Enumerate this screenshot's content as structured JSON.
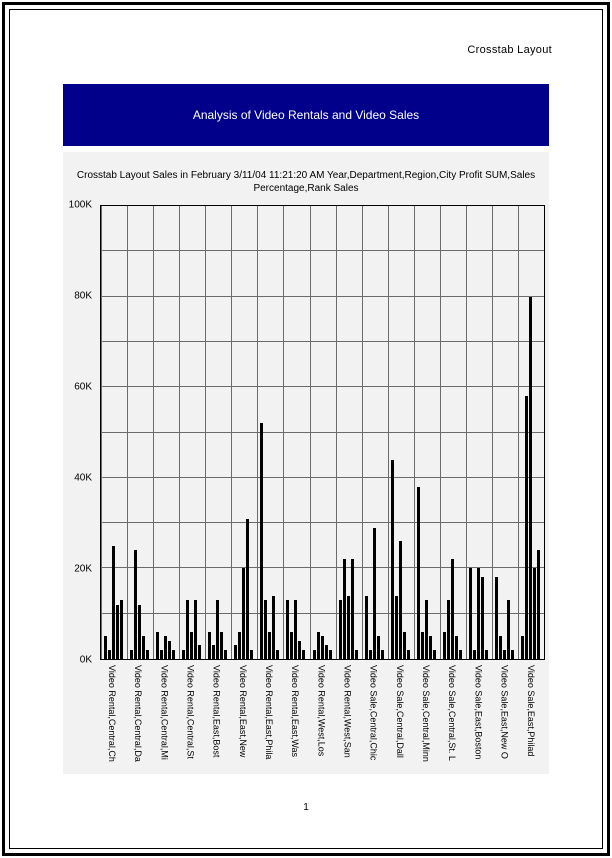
{
  "header": {
    "label": "Crosstab Layout"
  },
  "banner": {
    "title": "Analysis of Video Rentals and Video Sales"
  },
  "footer": {
    "page_number": "1"
  },
  "colors": {
    "banner": "#00008B",
    "bar": "#000000",
    "chart_bg": "#F2F2F2",
    "grid": "#6b6b6b"
  },
  "chart_data": {
    "type": "bar",
    "title_lines": [
      "Crosstab Layout Sales in February 3/11/04 11:21:20 AM Year,Department,Region,City Profit SUM,Sales",
      "Percentage,Rank Sales"
    ],
    "y_unit": "K",
    "ylim": [
      0,
      100
    ],
    "grid_step": 10,
    "yticks": [
      {
        "value": 0,
        "label": "0K"
      },
      {
        "value": 20,
        "label": "20K"
      },
      {
        "value": 40,
        "label": "40K"
      },
      {
        "value": 60,
        "label": "60K"
      },
      {
        "value": 80,
        "label": "80K"
      },
      {
        "value": 100,
        "label": "100K"
      }
    ],
    "categories": [
      "Video Rental,Central,Ch",
      "Video Rental,Central,Da",
      "Video Rental,Central,Mi",
      "Video Rental,Central,St",
      "Video Rental,East,Bost",
      "Video Rental,East,New",
      "Video Rental,East,Phila",
      "Video Rental,East,Was",
      "Video Rental,West,Los",
      "Video Rental,West,San",
      "Video Sale,Central,Chic",
      "Video Sale,Central,Dall",
      "Video Sale,Central,Minn",
      "Video Sale,Central,St. L",
      "Video Sale,East,Boston",
      "Video Sale,East,New O",
      "Video Sale,East,Philad"
    ],
    "values": [
      [
        5,
        2,
        25,
        12,
        13
      ],
      [
        2,
        24,
        12,
        5,
        2
      ],
      [
        6,
        2,
        5,
        4,
        2
      ],
      [
        2,
        13,
        6,
        13,
        3
      ],
      [
        6,
        3,
        13,
        6,
        2
      ],
      [
        3,
        6,
        20,
        31,
        2
      ],
      [
        52,
        13,
        6,
        14,
        2
      ],
      [
        13,
        6,
        13,
        4,
        2
      ],
      [
        2,
        6,
        5,
        3,
        2
      ],
      [
        13,
        22,
        14,
        22,
        2
      ],
      [
        14,
        2,
        29,
        5,
        2
      ],
      [
        44,
        14,
        26,
        6,
        2
      ],
      [
        38,
        6,
        13,
        5,
        2
      ],
      [
        6,
        13,
        22,
        5,
        2
      ],
      [
        20,
        2,
        20,
        18,
        2
      ],
      [
        18,
        5,
        2,
        13,
        2
      ],
      [
        5,
        58,
        80,
        20,
        24
      ]
    ]
  }
}
